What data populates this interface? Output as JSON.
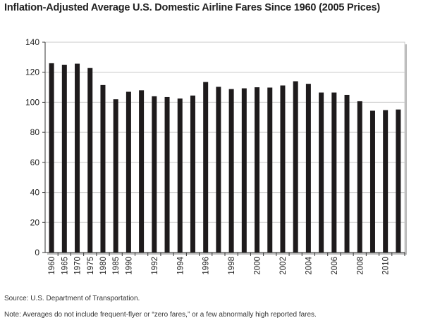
{
  "chart_data": {
    "type": "bar",
    "title": "Inflation-Adjusted Average U.S. Domestic Airline Fares Since 1960 (2005 Prices)",
    "categories": [
      "1960",
      "1965",
      "1970",
      "1975",
      "1980",
      "1985",
      "1990",
      "1991",
      "1992",
      "1993",
      "1994",
      "1995",
      "1996",
      "1997",
      "1998",
      "1999",
      "2000",
      "2001",
      "2002",
      "2003",
      "2004",
      "2005",
      "2006",
      "2007",
      "2008",
      "2009",
      "2010",
      "2011"
    ],
    "tick_labels": [
      "1960",
      "1965",
      "1970",
      "1975",
      "1980",
      "1985",
      "1990",
      "",
      "1992",
      "",
      "1994",
      "",
      "1996",
      "",
      "1998",
      "",
      "2000",
      "",
      "2002",
      "",
      "2004",
      "",
      "2006",
      "",
      "2008",
      "",
      "2010",
      ""
    ],
    "values": [
      126,
      125,
      125.7,
      122.8,
      111.5,
      102,
      107,
      108,
      104,
      103.5,
      102.5,
      104.5,
      113.5,
      110.3,
      108.8,
      109.3,
      110,
      109.8,
      111.2,
      114,
      112.3,
      106.5,
      106.5,
      104.9,
      100.7,
      94.4,
      94.8,
      95.2
    ],
    "ylim": [
      0,
      140
    ],
    "yticks": [
      0,
      20,
      40,
      60,
      80,
      100,
      120,
      140
    ],
    "grid": true,
    "bar_color": "#1e1b1c",
    "xlabel": "",
    "ylabel": ""
  },
  "source": "Source: U.S. Department of Transportation.",
  "note": "Note: Averages do not include frequent-flyer or “zero fares,” or a few abnormally high reported fares."
}
